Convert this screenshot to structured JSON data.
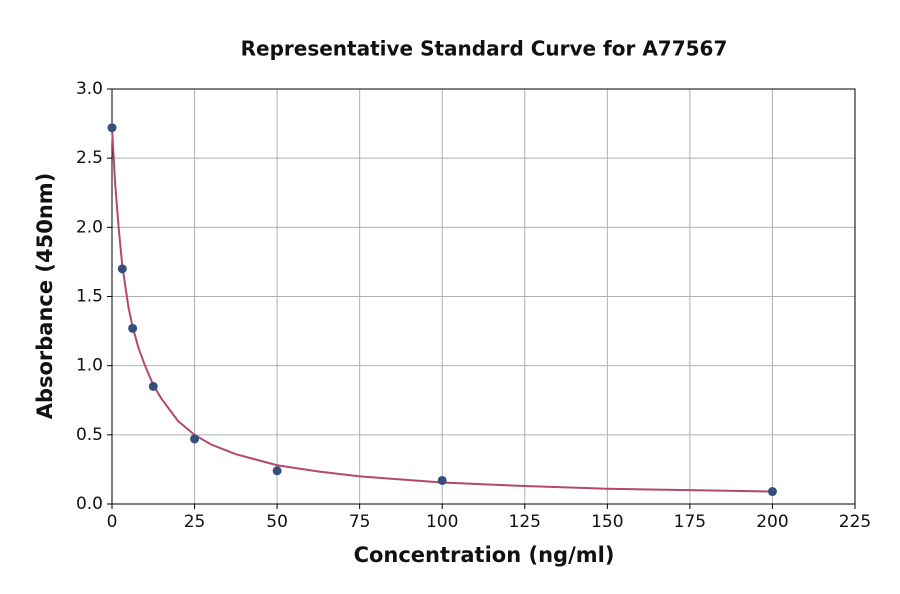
{
  "chart_data": {
    "type": "scatter",
    "title": "Representative Standard Curve for A77567",
    "x_label": "Concentration (ng/ml)",
    "y_label": "Absorbance (450nm)",
    "xlim": [
      0,
      225
    ],
    "ylim": [
      0,
      3
    ],
    "xticks": [
      0,
      25,
      50,
      75,
      100,
      125,
      150,
      175,
      200,
      225
    ],
    "yticks": [
      {
        "value": 0,
        "label": "0.0"
      },
      0.5,
      {
        "value": 1,
        "label": "1.0"
      },
      1.5,
      {
        "value": 2,
        "label": "2.0"
      },
      2.5,
      {
        "value": 3,
        "label": "3.0"
      }
    ],
    "grid": true,
    "series": [
      {
        "type": "line",
        "color": "#b5476f",
        "x": [
          0,
          1,
          2,
          3.125,
          5,
          6.25,
          8,
          10,
          12.5,
          15,
          20,
          25,
          30,
          37.5,
          50,
          62.5,
          75,
          100,
          125,
          150,
          175,
          200
        ],
        "values": [
          2.72,
          2.3,
          2.0,
          1.72,
          1.42,
          1.28,
          1.13,
          1.0,
          0.86,
          0.76,
          0.6,
          0.5,
          0.43,
          0.36,
          0.28,
          0.235,
          0.2,
          0.155,
          0.13,
          0.11,
          0.1,
          0.09
        ]
      },
      {
        "type": "scatter",
        "color": "#34507a",
        "x": [
          0,
          3.125,
          6.25,
          12.5,
          25,
          50,
          100,
          200
        ],
        "values": [
          2.72,
          1.7,
          1.27,
          0.85,
          0.47,
          0.24,
          0.17,
          0.09
        ]
      }
    ]
  }
}
